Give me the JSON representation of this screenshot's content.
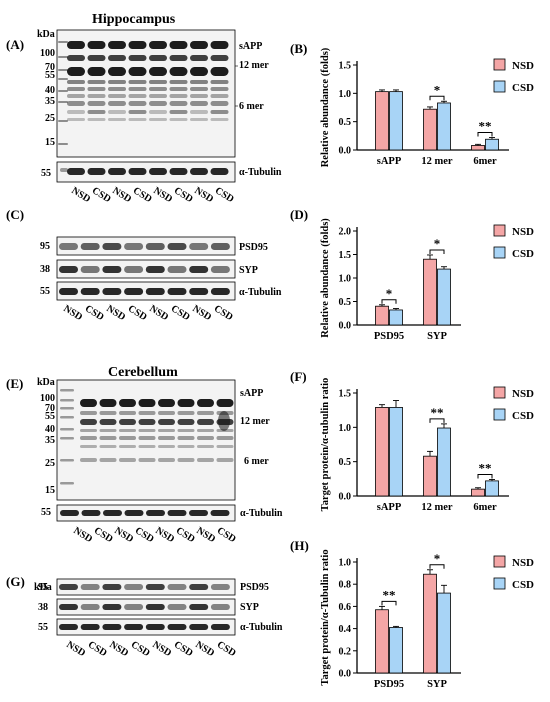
{
  "figure": {
    "section_hippocampus": "Hippocampus",
    "section_cerebellum": "Cerebellum",
    "kda": "kDa",
    "group_nsd": "NSD",
    "group_csd": "CSD",
    "tubulin": "α-Tubulin",
    "panels": {
      "A": {
        "label": "(A)",
        "markers": [
          "100",
          "70",
          "55",
          "40",
          "35",
          "25",
          "15"
        ],
        "loading_marker": "55",
        "bands": [
          "sAPP",
          "12 mer",
          "6 mer"
        ],
        "lanes": [
          "NSD",
          "CSD",
          "NSD",
          "CSD",
          "NSD",
          "CSD",
          "NSD",
          "CSD"
        ]
      },
      "C": {
        "label": "(C)",
        "rows": [
          {
            "marker": "95",
            "name": "PSD95"
          },
          {
            "marker": "38",
            "name": "SYP"
          },
          {
            "marker": "55",
            "name": "α-Tubulin"
          }
        ],
        "lanes": [
          "NSD",
          "CSD",
          "NSD",
          "CSD",
          "NSD",
          "CSD",
          "NSD",
          "CSD"
        ]
      },
      "E": {
        "label": "(E)",
        "markers": [
          "100",
          "70",
          "55",
          "40",
          "35",
          "25",
          "15"
        ],
        "loading_marker": "55",
        "bands": [
          "sAPP",
          "12 mer",
          "6 mer"
        ],
        "lanes": [
          "NSD",
          "CSD",
          "NSD",
          "CSD",
          "NSD",
          "CSD",
          "NSD",
          "CSD"
        ]
      },
      "G": {
        "label": "(G)",
        "rows": [
          {
            "marker": "95",
            "name": "PSD95"
          },
          {
            "marker": "38",
            "name": "SYP"
          },
          {
            "marker": "55",
            "name": "α-Tubulin"
          }
        ],
        "lanes": [
          "NSD",
          "CSD",
          "NSD",
          "CSD",
          "NSD",
          "CSD",
          "NSD",
          "CSD"
        ]
      }
    }
  },
  "chart_data": [
    {
      "panel": "(B)",
      "type": "bar",
      "ylabel": "Relative abundance (folds)",
      "categories": [
        "sAPP",
        "12 mer",
        "6mer"
      ],
      "series": [
        {
          "name": "NSD",
          "values": [
            1.03,
            0.72,
            0.08
          ]
        },
        {
          "name": "CSD",
          "values": [
            1.03,
            0.83,
            0.19
          ]
        }
      ],
      "errors": [
        [
          0.03,
          0.04,
          0.02
        ],
        [
          0.03,
          0.03,
          0.03
        ]
      ],
      "ylim": [
        0,
        1.5
      ],
      "yticks": [
        "0.0",
        "0.5",
        "1.0",
        "1.5"
      ],
      "significance": [
        null,
        "*",
        "**"
      ],
      "colors": [
        "#f4a6a6",
        "#a8d4f6"
      ]
    },
    {
      "panel": "(D)",
      "type": "bar",
      "ylabel": "Relative abundance (folds)",
      "categories": [
        "PSD95",
        "SYP"
      ],
      "series": [
        {
          "name": "NSD",
          "values": [
            0.4,
            1.4
          ]
        },
        {
          "name": "CSD",
          "values": [
            0.32,
            1.19
          ]
        }
      ],
      "errors": [
        [
          0.03,
          0.09
        ],
        [
          0.03,
          0.05
        ]
      ],
      "ylim": [
        0,
        2.0
      ],
      "yticks": [
        "0.0",
        "0.5",
        "1.0",
        "1.5",
        "2.0"
      ],
      "significance": [
        "*",
        "*"
      ],
      "colors": [
        "#f4a6a6",
        "#a8d4f6"
      ]
    },
    {
      "panel": "(F)",
      "type": "bar",
      "ylabel": "Target protein/α-tubulin ratio",
      "categories": [
        "sAPP",
        "12 mer",
        "6mer"
      ],
      "series": [
        {
          "name": "NSD",
          "values": [
            1.29,
            0.58,
            0.1
          ]
        },
        {
          "name": "CSD",
          "values": [
            1.29,
            0.99,
            0.22
          ]
        }
      ],
      "errors": [
        [
          0.04,
          0.07,
          0.02
        ],
        [
          0.1,
          0.06,
          0.02
        ]
      ],
      "ylim": [
        0,
        1.5
      ],
      "yticks": [
        "0.0",
        "0.5",
        "1.0",
        "1.5"
      ],
      "significance": [
        null,
        "**",
        "**"
      ],
      "colors": [
        "#f4a6a6",
        "#a8d4f6"
      ]
    },
    {
      "panel": "(H)",
      "type": "bar",
      "ylabel": "Target protein/α-Tubulin ratio",
      "categories": [
        "PSD95",
        "SYP"
      ],
      "series": [
        {
          "name": "NSD",
          "values": [
            0.57,
            0.89
          ]
        },
        {
          "name": "CSD",
          "values": [
            0.41,
            0.72
          ]
        }
      ],
      "errors": [
        [
          0.03,
          0.04
        ],
        [
          0.01,
          0.07
        ]
      ],
      "ylim": [
        0,
        1.0
      ],
      "yticks": [
        "0.0",
        "0.2",
        "0.4",
        "0.6",
        "0.8",
        "1.0"
      ],
      "significance": [
        "**",
        "*"
      ],
      "colors": [
        "#f4a6a6",
        "#a8d4f6"
      ]
    }
  ]
}
